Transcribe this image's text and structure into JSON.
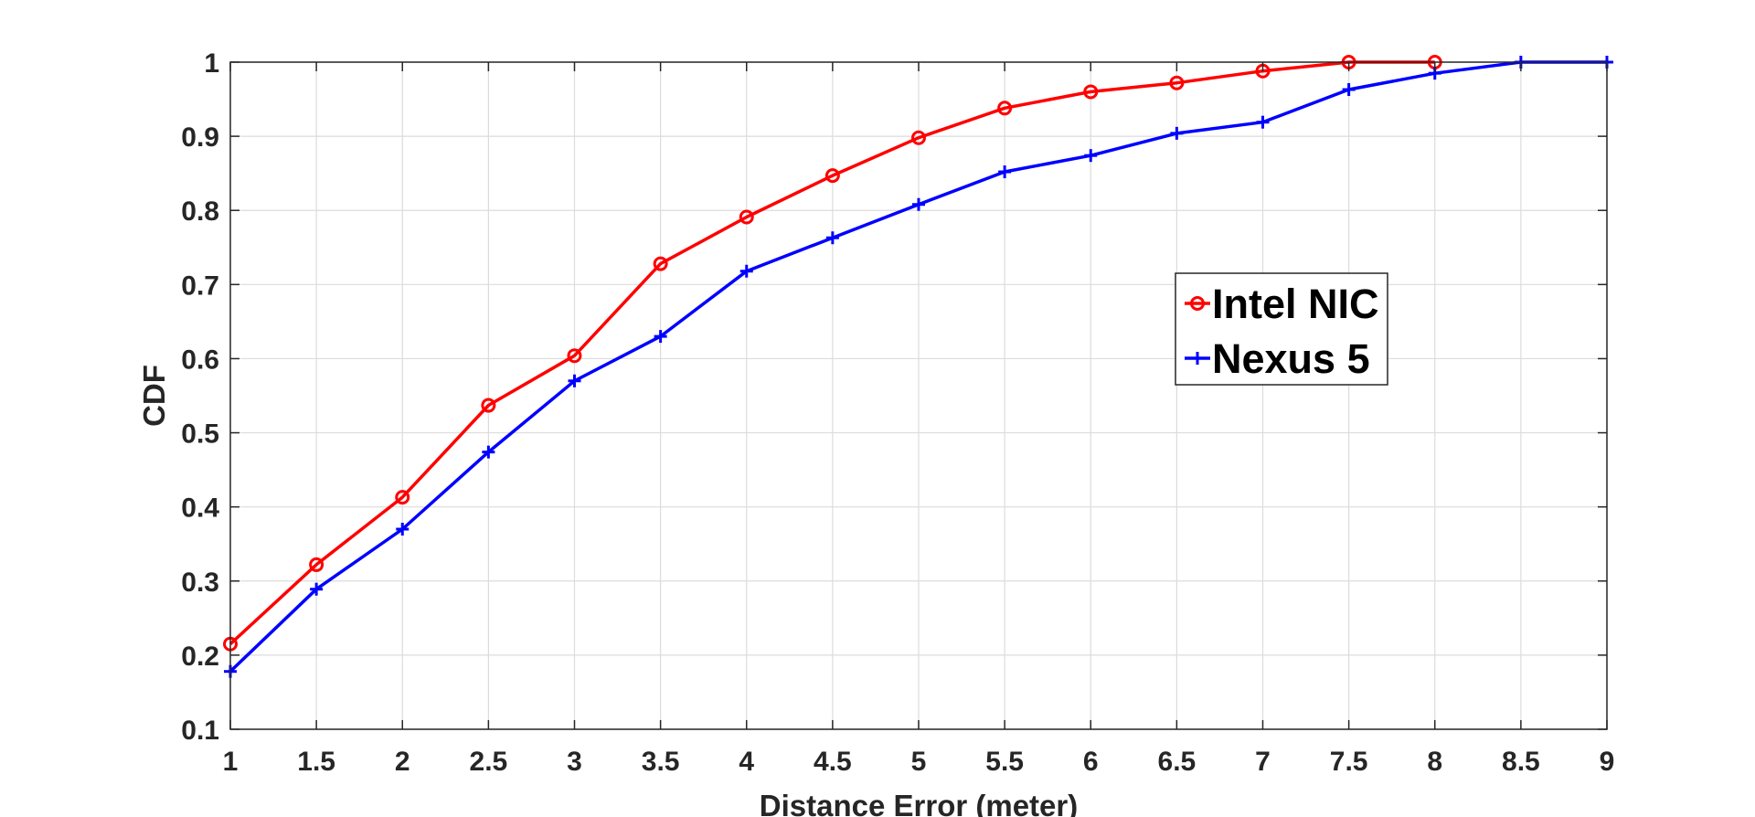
{
  "chart_data": {
    "type": "line",
    "title": "",
    "xlabel": "Distance Error (meter)",
    "ylabel": "CDF",
    "xlim": [
      1,
      9
    ],
    "ylim": [
      0.1,
      1
    ],
    "xticks": [
      "1",
      "1.5",
      "2",
      "2.5",
      "3",
      "3.5",
      "4",
      "4.5",
      "5",
      "5.5",
      "6",
      "6.5",
      "7",
      "7.5",
      "8",
      "8.5",
      "9"
    ],
    "yticks": [
      "0.1",
      "0.2",
      "0.3",
      "0.4",
      "0.5",
      "0.6",
      "0.7",
      "0.8",
      "0.9",
      "1"
    ],
    "grid": true,
    "legend_position": "right-center",
    "series": [
      {
        "name": "Intel NIC",
        "color": "#ff0000",
        "marker": "circle",
        "x": [
          1,
          1.5,
          2,
          2.5,
          3,
          3.5,
          4,
          4.5,
          5,
          5.5,
          6,
          6.5,
          7,
          7.5,
          8
        ],
        "y": [
          0.215,
          0.322,
          0.413,
          0.537,
          0.604,
          0.728,
          0.791,
          0.847,
          0.898,
          0.938,
          0.96,
          0.972,
          0.988,
          1.0,
          1.0
        ]
      },
      {
        "name": "Nexus 5",
        "color": "#0000ff",
        "marker": "plus",
        "x": [
          1,
          1.5,
          2,
          2.5,
          3,
          3.5,
          4,
          4.5,
          5,
          5.5,
          6,
          6.5,
          7,
          7.5,
          8,
          8.5,
          9
        ],
        "y": [
          0.178,
          0.289,
          0.37,
          0.474,
          0.57,
          0.63,
          0.718,
          0.763,
          0.808,
          0.852,
          0.874,
          0.904,
          0.919,
          0.963,
          0.985,
          1.0,
          1.0
        ]
      }
    ]
  }
}
